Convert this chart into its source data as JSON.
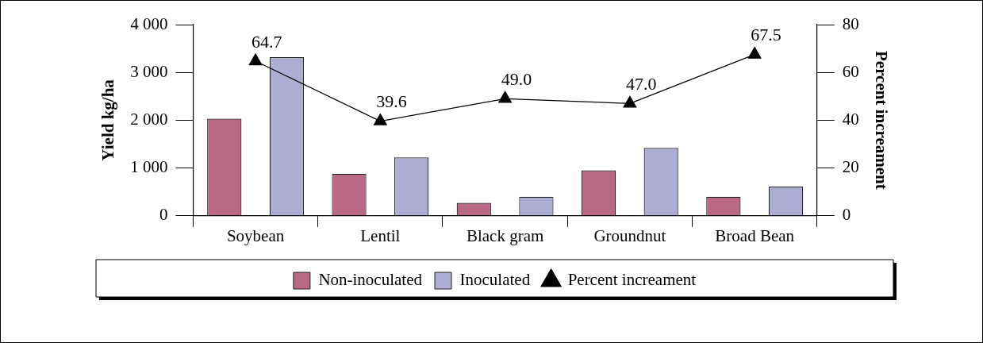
{
  "chart_data": {
    "type": "bar",
    "ylabel": "Yield kg/ha",
    "y2label": "Percent increament",
    "categories": [
      "Soybean",
      "Lentil",
      "Black gram",
      "Groundnut",
      "Broad Bean"
    ],
    "series": [
      {
        "name": "Non-inoculated",
        "color": "#b96885",
        "values": [
          2030,
          880,
          270,
          950,
          400
        ]
      },
      {
        "name": "Inoculated",
        "color": "#adadd3",
        "values": [
          3320,
          1220,
          400,
          1420,
          610
        ]
      },
      {
        "name": "Percent increament",
        "type": "line",
        "axis": "y2",
        "color": "#000000",
        "values": [
          64.7,
          39.6,
          49.0,
          47.0,
          67.5
        ],
        "value_labels": [
          "64.7",
          "39.6",
          "49.0",
          "47.0",
          "67.5"
        ]
      }
    ],
    "ylim": [
      0,
      4000
    ],
    "yticks": [
      {
        "value": 0,
        "label": "0"
      },
      {
        "value": 1000,
        "label": "1 000"
      },
      {
        "value": 2000,
        "label": "2 000"
      },
      {
        "value": 3000,
        "label": "3 000"
      },
      {
        "value": 4000,
        "label": "4 000"
      }
    ],
    "y2lim": [
      0,
      80
    ],
    "y2ticks": [
      0,
      20,
      40,
      60,
      80
    ],
    "grid": false,
    "legend": "bottom",
    "marker": "triangle",
    "line_style": "solid"
  }
}
